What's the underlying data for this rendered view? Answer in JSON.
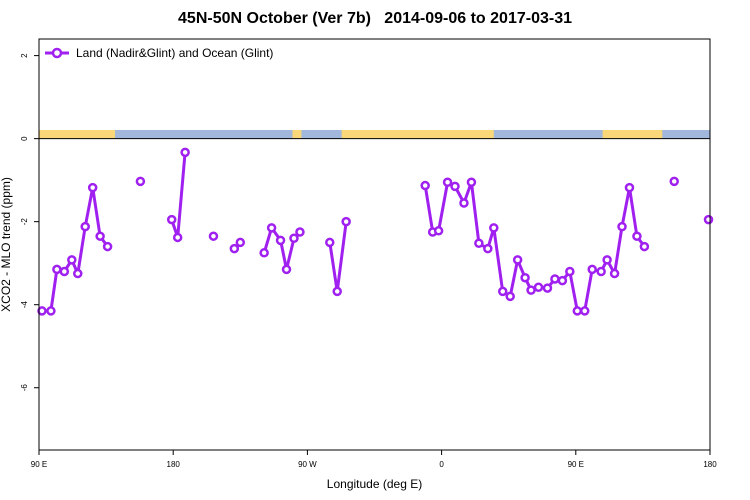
{
  "chart_data": {
    "type": "line",
    "title": "45N-50N October (Ver 7b)   2014-09-06 to 2017-03-31",
    "xlabel": "Longitude (deg E)",
    "ylabel": "XCO2 - MLO trend (ppm)",
    "xlim": [
      90,
      540
    ],
    "ylim": [
      -7.5,
      2.4
    ],
    "x_ticks": [
      {
        "value": 90,
        "label": "90 E"
      },
      {
        "value": 180,
        "label": "180"
      },
      {
        "value": 270,
        "label": "90 W"
      },
      {
        "value": 360,
        "label": "0"
      },
      {
        "value": 450,
        "label": "90 E"
      },
      {
        "value": 540,
        "label": "180"
      }
    ],
    "y_ticks": [
      {
        "value": 2,
        "label": "2"
      },
      {
        "value": 0,
        "label": "0"
      },
      {
        "value": -2,
        "label": "-2"
      },
      {
        "value": -4,
        "label": "-4"
      },
      {
        "value": -6,
        "label": "-6"
      }
    ],
    "grid": false,
    "legend_position": "top-left",
    "series": [
      {
        "name": "Land (Nadir&Glint) and Ocean (Glint)",
        "color": "#a020f0",
        "segments": [
          [
            [
              92,
              -4.15
            ],
            [
              98,
              -4.15
            ],
            [
              102,
              -3.15
            ],
            [
              107,
              -3.2
            ],
            [
              112,
              -2.92
            ],
            [
              116,
              -3.25
            ],
            [
              121,
              -2.12
            ],
            [
              126,
              -1.18
            ],
            [
              131,
              -2.35
            ],
            [
              136,
              -2.6
            ]
          ],
          [
            [
              158,
              -1.03
            ]
          ],
          [
            [
              179,
              -1.95
            ],
            [
              183,
              -2.38
            ],
            [
              188,
              -0.33
            ]
          ],
          [
            [
              207,
              -2.35
            ]
          ],
          [
            [
              221,
              -2.65
            ],
            [
              225,
              -2.5
            ]
          ],
          [
            [
              241,
              -2.75
            ],
            [
              246,
              -2.15
            ],
            [
              252,
              -2.45
            ],
            [
              256,
              -3.15
            ],
            [
              261,
              -2.4
            ],
            [
              265,
              -2.25
            ]
          ],
          [
            [
              285,
              -2.5
            ],
            [
              290,
              -3.68
            ],
            [
              296,
              -2.0
            ]
          ],
          [
            [
              349,
              -1.13
            ],
            [
              354,
              -2.25
            ],
            [
              358,
              -2.22
            ],
            [
              364,
              -1.05
            ],
            [
              369,
              -1.15
            ],
            [
              375,
              -1.55
            ],
            [
              380,
              -1.05
            ],
            [
              385,
              -2.52
            ],
            [
              391,
              -2.65
            ],
            [
              395,
              -2.15
            ],
            [
              401,
              -3.68
            ],
            [
              406,
              -3.8
            ],
            [
              411,
              -2.92
            ],
            [
              416,
              -3.35
            ],
            [
              420,
              -3.65
            ],
            [
              425,
              -3.58
            ],
            [
              431,
              -3.6
            ],
            [
              436,
              -3.38
            ],
            [
              441,
              -3.42
            ],
            [
              446,
              -3.2
            ],
            [
              451,
              -4.15
            ],
            [
              456,
              -4.15
            ],
            [
              461,
              -3.15
            ],
            [
              467,
              -3.2
            ],
            [
              471,
              -2.92
            ],
            [
              476,
              -3.25
            ],
            [
              481,
              -2.12
            ],
            [
              486,
              -1.18
            ],
            [
              491,
              -2.35
            ],
            [
              496,
              -2.6
            ]
          ],
          [
            [
              516,
              -1.03
            ]
          ],
          [
            [
              539,
              -1.95
            ]
          ]
        ]
      }
    ],
    "surface_bar": {
      "land_color": "#fad879",
      "ocean_color": "#a1b7dc",
      "ocean_ranges": [
        [
          141,
          260
        ],
        [
          266,
          293
        ],
        [
          395,
          468
        ],
        [
          508,
          540
        ]
      ]
    }
  }
}
